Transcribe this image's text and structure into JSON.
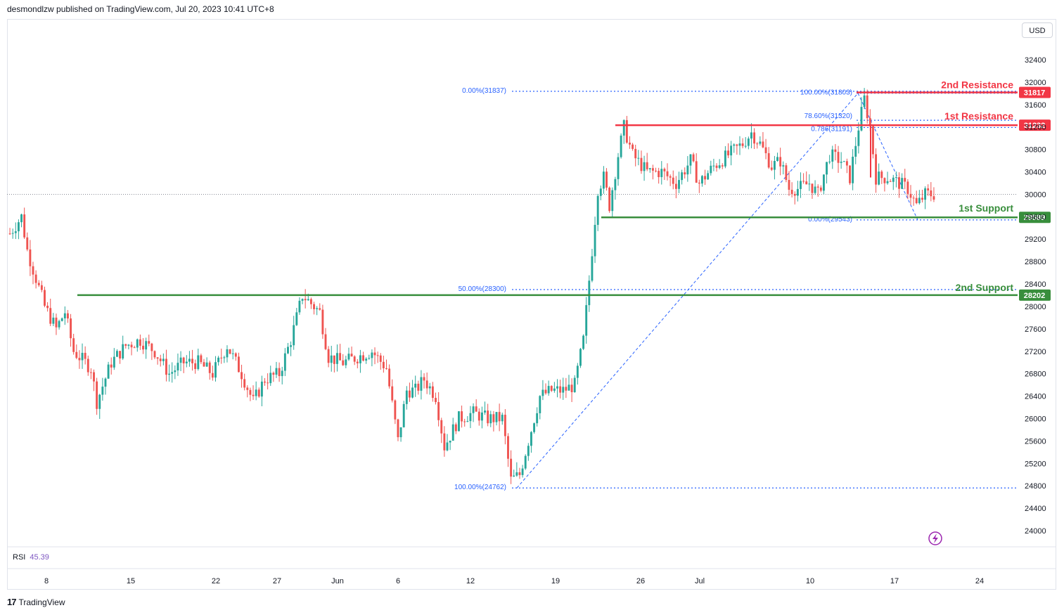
{
  "header": {
    "publish_text": "desmondlzw published on TradingView.com, Jul 20, 2023 10:41 UTC+8"
  },
  "currency": "USD",
  "rsi": {
    "label": "RSI",
    "value": "45.39"
  },
  "brand": {
    "name": "TradingView"
  },
  "colors": {
    "up": "#26a69a",
    "down": "#ef5350",
    "resistance": "#f23645",
    "support": "#388e3c",
    "fib": "#2962ff"
  },
  "chart_data": {
    "type": "candlestick",
    "price_axis": {
      "min": 23900,
      "max": 32700,
      "ticks": [
        32400,
        32000,
        31600,
        31200,
        30800,
        30400,
        30000,
        29600,
        29200,
        28800,
        28400,
        28000,
        27600,
        27200,
        26800,
        26400,
        26000,
        25600,
        25200,
        24800,
        24400,
        24000
      ]
    },
    "time_axis": {
      "labels": [
        "8",
        "15",
        "22",
        "27",
        "Jun",
        "6",
        "12",
        "19",
        "26",
        "Jul",
        "10",
        "17",
        "24"
      ]
    },
    "current_price": 30000,
    "levels": [
      {
        "name": "2nd Resistance",
        "price": 31817,
        "kind": "resistance",
        "badge": "31817"
      },
      {
        "name": "1st Resistance",
        "price": 31232,
        "kind": "resistance",
        "badge": "31232"
      },
      {
        "name": "1st Support",
        "price": 29589,
        "kind": "support",
        "badge": "29589"
      },
      {
        "name": "2nd Support",
        "price": 28202,
        "kind": "support",
        "badge": "28202"
      }
    ],
    "fib_labels": [
      {
        "text": "0.00%(31837)",
        "price": 31837
      },
      {
        "text": "50.00%(28300)",
        "price": 28300
      },
      {
        "text": "100.00%(24762)",
        "price": 24762
      },
      {
        "text": "100.00%(31803)",
        "price": 31803
      },
      {
        "text": "78.60%(31320)",
        "price": 31320
      },
      {
        "text": "0.786(31191)",
        "price": 31191
      },
      {
        "text": "0.00%(29543)",
        "price": 29543
      }
    ],
    "anchors": [
      [
        0,
        29300
      ],
      [
        4,
        29600
      ],
      [
        6,
        29000
      ],
      [
        12,
        28000
      ],
      [
        16,
        27600
      ],
      [
        19,
        27900
      ],
      [
        22,
        27200
      ],
      [
        28,
        26900
      ],
      [
        30,
        26300
      ],
      [
        35,
        27000
      ],
      [
        40,
        27300
      ],
      [
        45,
        27400
      ],
      [
        50,
        27200
      ],
      [
        55,
        26800
      ],
      [
        60,
        27000
      ],
      [
        65,
        27000
      ],
      [
        70,
        26800
      ],
      [
        75,
        27300
      ],
      [
        80,
        26800
      ],
      [
        84,
        26300
      ],
      [
        88,
        26700
      ],
      [
        93,
        26800
      ],
      [
        97,
        27400
      ],
      [
        101,
        28200
      ],
      [
        104,
        28050
      ],
      [
        107,
        27900
      ],
      [
        110,
        27100
      ],
      [
        115,
        27000
      ],
      [
        120,
        27100
      ],
      [
        125,
        27200
      ],
      [
        130,
        26900
      ],
      [
        134,
        25600
      ],
      [
        137,
        26500
      ],
      [
        140,
        26500
      ],
      [
        143,
        26700
      ],
      [
        147,
        26400
      ],
      [
        150,
        25500
      ],
      [
        155,
        26000
      ],
      [
        160,
        26100
      ],
      [
        165,
        26000
      ],
      [
        170,
        26000
      ],
      [
        173,
        24900
      ],
      [
        176,
        25000
      ],
      [
        180,
        25800
      ],
      [
        183,
        26400
      ],
      [
        187,
        26500
      ],
      [
        191,
        26500
      ],
      [
        195,
        26600
      ],
      [
        198,
        27400
      ],
      [
        201,
        29000
      ],
      [
        203,
        30100
      ],
      [
        205,
        30300
      ],
      [
        207,
        29800
      ],
      [
        210,
        30700
      ],
      [
        212,
        31200
      ],
      [
        215,
        30700
      ],
      [
        220,
        30400
      ],
      [
        225,
        30400
      ],
      [
        230,
        30200
      ],
      [
        235,
        30600
      ],
      [
        238,
        30200
      ],
      [
        243,
        30500
      ],
      [
        248,
        30700
      ],
      [
        253,
        30900
      ],
      [
        256,
        31100
      ],
      [
        259,
        30900
      ],
      [
        263,
        30500
      ],
      [
        266,
        30600
      ],
      [
        269,
        30100
      ],
      [
        272,
        30100
      ],
      [
        276,
        30200
      ],
      [
        279,
        30000
      ],
      [
        283,
        30700
      ],
      [
        287,
        30600
      ],
      [
        290,
        30300
      ],
      [
        293,
        31200
      ],
      [
        295,
        31700
      ],
      [
        297,
        31200
      ],
      [
        299,
        30300
      ],
      [
        303,
        30300
      ],
      [
        307,
        30200
      ],
      [
        310,
        30100
      ],
      [
        313,
        29800
      ],
      [
        316,
        30000
      ],
      [
        318,
        30000
      ]
    ]
  }
}
